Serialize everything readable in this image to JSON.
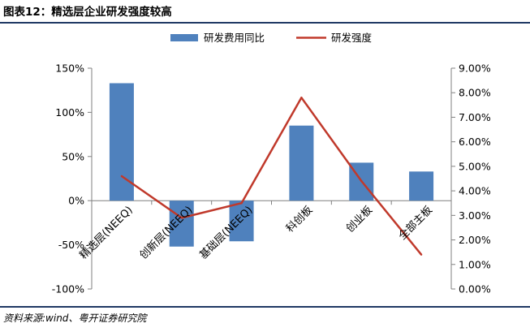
{
  "figure": {
    "title": "图表12：精选层企业研发强度较高",
    "source": "资料来源:wind、粤开证券研究院"
  },
  "chart_data": {
    "type": "bar",
    "categories": [
      "精选层(NEEQ)",
      "创新层(NEEQ)",
      "基础层(NEEQ)",
      "科创板",
      "创业板",
      "全部主板"
    ],
    "series": [
      {
        "name": "研发费用同比",
        "type": "bar",
        "axis": "left",
        "color": "#4f81bd",
        "values": [
          133,
          -52,
          -46,
          85,
          43,
          33
        ]
      },
      {
        "name": "研发强度",
        "type": "line",
        "axis": "right",
        "color": "#c0392b",
        "values": [
          4.6,
          2.9,
          3.5,
          7.8,
          4.4,
          1.4
        ]
      }
    ],
    "y_left": {
      "min": -100,
      "max": 150,
      "step": 50,
      "tick_labels": [
        "-100%",
        "-50%",
        "0%",
        "50%",
        "100%",
        "150%"
      ]
    },
    "y_right": {
      "min": 0,
      "max": 9,
      "step": 1,
      "tick_labels": [
        "0.00%",
        "1.00%",
        "2.00%",
        "3.00%",
        "4.00%",
        "5.00%",
        "6.00%",
        "7.00%",
        "8.00%",
        "9.00%"
      ]
    },
    "legend": {
      "position": "top"
    },
    "grid": false
  }
}
